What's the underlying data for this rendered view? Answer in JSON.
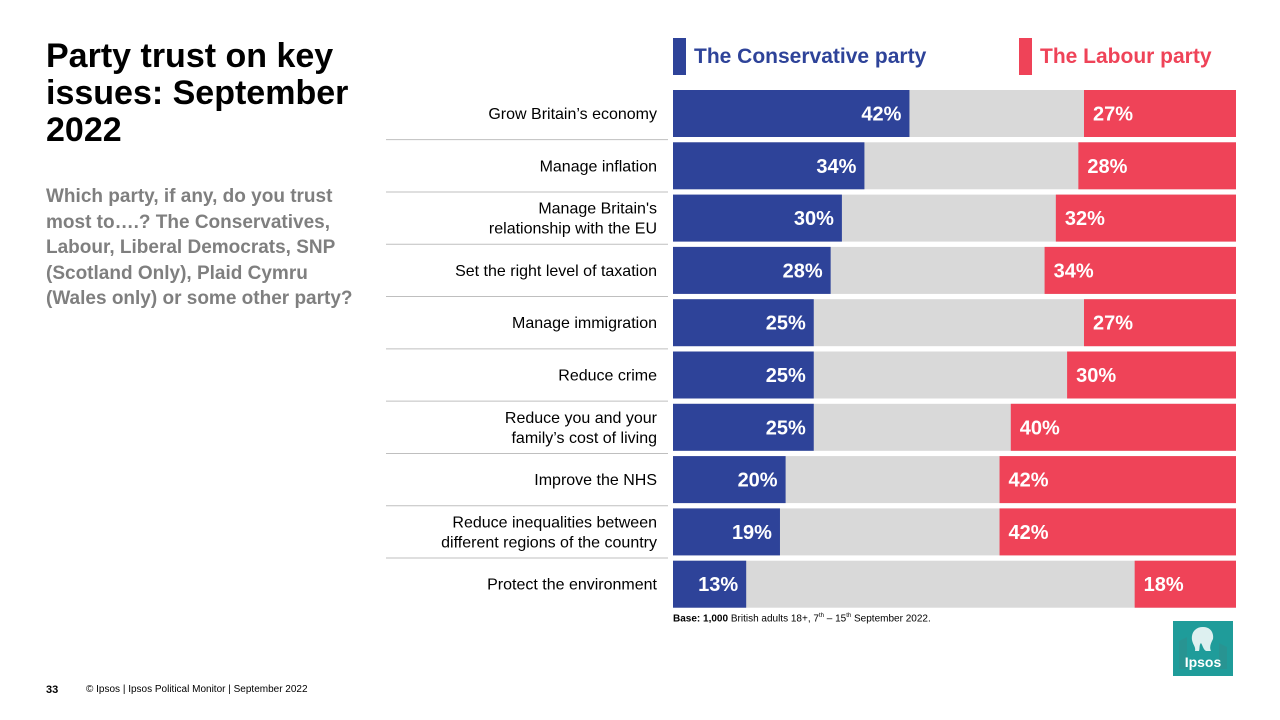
{
  "title": "Party trust on key issues: September 2022",
  "subtitle": "Which party, if any, do you trust most to….? The Conservatives, Labour, Liberal Democrats, SNP (Scotland Only), Plaid Cymru (Wales only) or some other party?",
  "legend": {
    "conservative": "The Conservative party",
    "labour": "The Labour party"
  },
  "colors": {
    "conservative": "#2e4399",
    "labour": "#ef4358",
    "other": "#d9d9d9",
    "logo": "#1f9c9a"
  },
  "chart_data": {
    "type": "bar",
    "orientation": "horizontal-stacked",
    "categories": [
      "Grow Britain’s economy",
      "Manage inflation",
      "Manage Britain's relationship with the EU",
      "Set the right level of taxation",
      "Manage immigration",
      "Reduce crime",
      "Reduce you and your family’s cost of living",
      "Improve the NHS",
      "Reduce inequalities between different regions of the country",
      "Protect the environment"
    ],
    "category_lines": [
      [
        "Grow Britain’s economy"
      ],
      [
        "Manage inflation"
      ],
      [
        "Manage Britain's",
        "relationship with the EU"
      ],
      [
        "Set the right level of taxation"
      ],
      [
        "Manage immigration"
      ],
      [
        "Reduce crime"
      ],
      [
        "Reduce you and your",
        "family’s cost of living"
      ],
      [
        "Improve the NHS"
      ],
      [
        "Reduce inequalities between",
        "different regions of the country"
      ],
      [
        "Protect the environment"
      ]
    ],
    "series": [
      {
        "name": "The Conservative party",
        "values": [
          42,
          34,
          30,
          28,
          25,
          25,
          25,
          20,
          19,
          13
        ]
      },
      {
        "name": "The Labour party",
        "values": [
          27,
          28,
          32,
          34,
          27,
          30,
          40,
          42,
          42,
          18
        ]
      }
    ],
    "value_suffix": "%",
    "xlim": [
      0,
      100
    ]
  },
  "base_note": {
    "label": "Base:",
    "count": "1,000",
    "text1": " British adults 18+, 7",
    "sup1": "th",
    "text2": " – 15",
    "sup2": "th",
    "text3": " September 2022."
  },
  "footer": {
    "page_number": "33",
    "text": "© Ipsos | Ipsos Political Monitor | September 2022"
  },
  "logo_text": "Ipsos"
}
